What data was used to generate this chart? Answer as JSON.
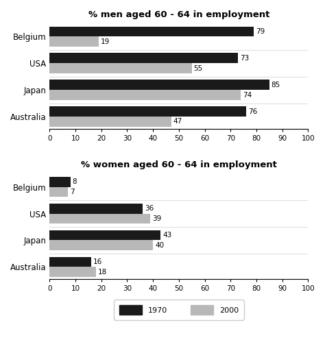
{
  "men_title": "% men aged 60 - 64 in employment",
  "women_title": "% women aged 60 - 64 in employment",
  "countries": [
    "Belgium",
    "USA",
    "Japan",
    "Australia"
  ],
  "men_1970": [
    79,
    73,
    85,
    76
  ],
  "men_2000": [
    19,
    55,
    74,
    47
  ],
  "women_1970": [
    8,
    36,
    43,
    16
  ],
  "women_2000": [
    7,
    39,
    40,
    18
  ],
  "color_1970": "#1a1a1a",
  "color_2000": "#b8b8b8",
  "xlim": [
    0,
    100
  ],
  "xticks": [
    0,
    10,
    20,
    30,
    40,
    50,
    60,
    70,
    80,
    90,
    100
  ],
  "bar_height": 0.38,
  "label_fontsize": 7.5,
  "title_fontsize": 9.5,
  "tick_fontsize": 7.5,
  "country_fontsize": 8.5,
  "legend_1970": "1970",
  "legend_2000": "2000",
  "bg_color": "#ffffff"
}
